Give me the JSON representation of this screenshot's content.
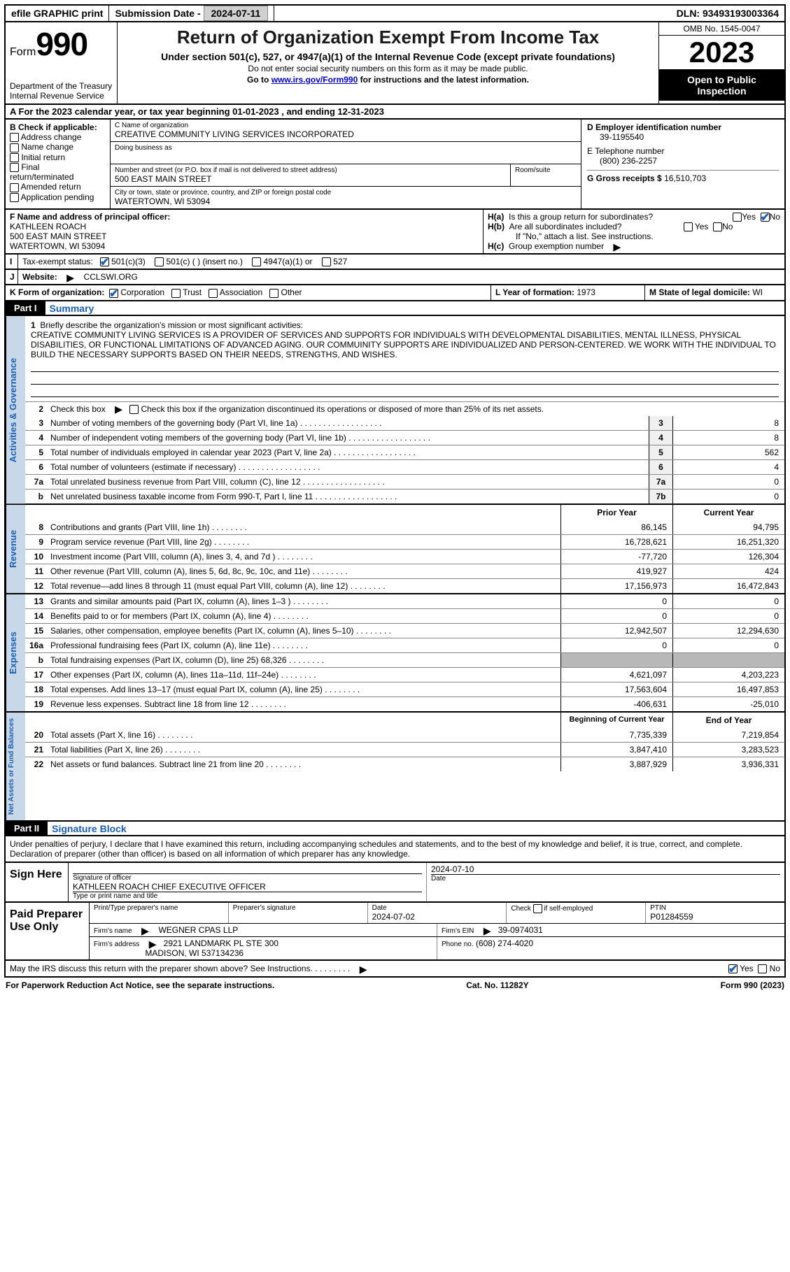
{
  "topbar": {
    "efile": "efile GRAPHIC print",
    "submission_label": "Submission Date - ",
    "submission_date": "2024-07-11",
    "dln_label": "DLN: ",
    "dln": "93493193003364"
  },
  "header": {
    "form_word": "Form",
    "form_no": "990",
    "dept": "Department of the Treasury\nInternal Revenue Service",
    "title": "Return of Organization Exempt From Income Tax",
    "sub": "Under section 501(c), 527, or 4947(a)(1) of the Internal Revenue Code (except private foundations)",
    "note1": "Do not enter social security numbers on this form as it may be made public.",
    "note2_pre": "Go to ",
    "note2_link": "www.irs.gov/Form990",
    "note2_post": " for instructions and the latest information.",
    "omb": "OMB No. 1545-0047",
    "year": "2023",
    "open": "Open to Public Inspection"
  },
  "a": {
    "text": "A For the 2023 calendar year, or tax year beginning 01-01-2023   , and ending 12-31-2023"
  },
  "b": {
    "label": "B Check if applicable:",
    "opts": [
      "Address change",
      "Name change",
      "Initial return",
      "Final return/terminated",
      "Amended return",
      "Application pending"
    ]
  },
  "c": {
    "name_label": "C Name of organization",
    "name": "CREATIVE COMMUNITY LIVING SERVICES INCORPORATED",
    "dba_label": "Doing business as",
    "street_label": "Number and street (or P.O. box if mail is not delivered to street address)",
    "room_label": "Room/suite",
    "street": "500 EAST MAIN STREET",
    "city_label": "City or town, state or province, country, and ZIP or foreign postal code",
    "city": "WATERTOWN, WI  53094"
  },
  "d": {
    "label": "D Employer identification number",
    "ein": "39-1195540",
    "phone_label": "E Telephone number",
    "phone": "(800) 236-2257",
    "gross_label": "G Gross receipts $ ",
    "gross": "16,510,703"
  },
  "f": {
    "label": "F Name and address of principal officer:",
    "name": "KATHLEEN ROACH",
    "street": "500 EAST MAIN STREET",
    "city": "WATERTOWN, WI  53094"
  },
  "h": {
    "a": "Is this a group return for subordinates?",
    "b": "Are all subordinates included?",
    "b_note": "If \"No,\" attach a list. See instructions.",
    "c": "Group exemption number ",
    "tag_a": "H(a)",
    "tag_b": "H(b)",
    "tag_c": "H(c)",
    "yes": "Yes",
    "no": "No"
  },
  "i": {
    "label": "Tax-exempt status:",
    "o1": "501(c)(3)",
    "o2": "501(c) (  ) (insert no.)",
    "o3": "4947(a)(1) or",
    "o4": "527"
  },
  "j": {
    "label": "Website:",
    "val": "CCLSWI.ORG",
    "arrow": "▸"
  },
  "k": {
    "label": "K Form of organization:",
    "o1": "Corporation",
    "o2": "Trust",
    "o3": "Association",
    "o4": "Other"
  },
  "l": {
    "label": "L Year of formation: ",
    "val": "1973"
  },
  "m": {
    "label": "M State of legal domicile: ",
    "val": "WI"
  },
  "part1": {
    "tag": "Part I",
    "title": "Summary",
    "q1_label": "Briefly describe the organization's mission or most significant activities:",
    "mission": "CREATIVE COMMUNITY LIVING SERVICES IS A PROVIDER OF SERVICES AND SUPPORTS FOR INDIVIDUALS WITH DEVELOPMENTAL DISABILITIES, MENTAL ILLNESS, PHYSICAL DISABILITIES, OR FUNCTIONAL LIMITATIONS OF ADVANCED AGING. OUR COMMUINITY SUPPORTS ARE INDIVIDUALIZED AND PERSON-CENTERED. WE WORK WITH THE INDIVIDUAL TO BUILD THE NECESSARY SUPPORTS BASED ON THEIR NEEDS, STRENGTHS, AND WISHES.",
    "q2": "Check this box  if the organization discontinued its operations or disposed of more than 25% of its net assets.",
    "vtab1": "Activities & Governance",
    "vtab2": "Revenue",
    "vtab3": "Expenses",
    "vtab4": "Net Assets or Fund Balances",
    "prior": "Prior Year",
    "current": "Current Year",
    "begin": "Beginning of Current Year",
    "end": "End of Year"
  },
  "gov_lines": [
    {
      "n": "3",
      "t": "Number of voting members of the governing body (Part VI, line 1a)",
      "box": "3",
      "v": "8"
    },
    {
      "n": "4",
      "t": "Number of independent voting members of the governing body (Part VI, line 1b)",
      "box": "4",
      "v": "8"
    },
    {
      "n": "5",
      "t": "Total number of individuals employed in calendar year 2023 (Part V, line 2a)",
      "box": "5",
      "v": "562"
    },
    {
      "n": "6",
      "t": "Total number of volunteers (estimate if necessary)",
      "box": "6",
      "v": "4"
    },
    {
      "n": "7a",
      "t": "Total unrelated business revenue from Part VIII, column (C), line 12",
      "box": "7a",
      "v": "0"
    },
    {
      "n": "b",
      "t": "Net unrelated business taxable income from Form 990-T, Part I, line 11",
      "box": "7b",
      "v": "0"
    }
  ],
  "rev_lines": [
    {
      "n": "8",
      "t": "Contributions and grants (Part VIII, line 1h)",
      "p": "86,145",
      "c": "94,795"
    },
    {
      "n": "9",
      "t": "Program service revenue (Part VIII, line 2g)",
      "p": "16,728,621",
      "c": "16,251,320"
    },
    {
      "n": "10",
      "t": "Investment income (Part VIII, column (A), lines 3, 4, and 7d )",
      "p": "-77,720",
      "c": "126,304"
    },
    {
      "n": "11",
      "t": "Other revenue (Part VIII, column (A), lines 5, 6d, 8c, 9c, 10c, and 11e)",
      "p": "419,927",
      "c": "424"
    },
    {
      "n": "12",
      "t": "Total revenue—add lines 8 through 11 (must equal Part VIII, column (A), line 12)",
      "p": "17,156,973",
      "c": "16,472,843"
    }
  ],
  "exp_lines": [
    {
      "n": "13",
      "t": "Grants and similar amounts paid (Part IX, column (A), lines 1–3 )",
      "p": "0",
      "c": "0"
    },
    {
      "n": "14",
      "t": "Benefits paid to or for members (Part IX, column (A), line 4)",
      "p": "0",
      "c": "0"
    },
    {
      "n": "15",
      "t": "Salaries, other compensation, employee benefits (Part IX, column (A), lines 5–10)",
      "p": "12,942,507",
      "c": "12,294,630"
    },
    {
      "n": "16a",
      "t": "Professional fundraising fees (Part IX, column (A), line 11e)",
      "p": "0",
      "c": "0"
    },
    {
      "n": "b",
      "t": "Total fundraising expenses (Part IX, column (D), line 25) 68,326",
      "p": "",
      "c": "",
      "gray": true
    },
    {
      "n": "17",
      "t": "Other expenses (Part IX, column (A), lines 11a–11d, 11f–24e)",
      "p": "4,621,097",
      "c": "4,203,223"
    },
    {
      "n": "18",
      "t": "Total expenses. Add lines 13–17 (must equal Part IX, column (A), line 25)",
      "p": "17,563,604",
      "c": "16,497,853"
    },
    {
      "n": "19",
      "t": "Revenue less expenses. Subtract line 18 from line 12",
      "p": "-406,631",
      "c": "-25,010"
    }
  ],
  "net_lines": [
    {
      "n": "20",
      "t": "Total assets (Part X, line 16)",
      "p": "7,735,339",
      "c": "7,219,854"
    },
    {
      "n": "21",
      "t": "Total liabilities (Part X, line 26)",
      "p": "3,847,410",
      "c": "3,283,523"
    },
    {
      "n": "22",
      "t": "Net assets or fund balances. Subtract line 21 from line 20",
      "p": "3,887,929",
      "c": "3,936,331"
    }
  ],
  "part2": {
    "tag": "Part II",
    "title": "Signature Block",
    "decl": "Under penalties of perjury, I declare that I have examined this return, including accompanying schedules and statements, and to the best of my knowledge and belief, it is true, correct, and complete. Declaration of preparer (other than officer) is based on all information of which preparer has any knowledge."
  },
  "sign": {
    "here": "Sign Here",
    "sig_label": "Signature of officer",
    "officer": "KATHLEEN ROACH  CHIEF EXECUTIVE OFFICER",
    "type_label": "Type or print name and title",
    "date_label": "Date",
    "date": "2024-07-10"
  },
  "preparer": {
    "label": "Paid Preparer Use Only",
    "name_label": "Print/Type preparer's name",
    "sig_label": "Preparer's signature",
    "date_label": "Date",
    "date": "2024-07-02",
    "self_label": "Check          if self-employed",
    "ptin_label": "PTIN",
    "ptin": "P01284559",
    "firm_label": "Firm's name",
    "firm": "WEGNER CPAS LLP",
    "ein_label": "Firm's EIN",
    "ein": "39-0974031",
    "addr_label": "Firm's address",
    "addr1": "2921 LANDMARK PL STE 300",
    "addr2": "MADISON, WI  537134236",
    "phone_label": "Phone no.",
    "phone": "(608) 274-4020"
  },
  "discuss": "May the IRS discuss this return with the preparer shown above? See Instructions.",
  "footer": {
    "left": "For Paperwork Reduction Act Notice, see the separate instructions.",
    "mid": "Cat. No. 11282Y",
    "right": "Form 990 (2023)"
  },
  "colors": {
    "blue": "#1a5fb4",
    "tab_bg": "#c8d8e8"
  }
}
